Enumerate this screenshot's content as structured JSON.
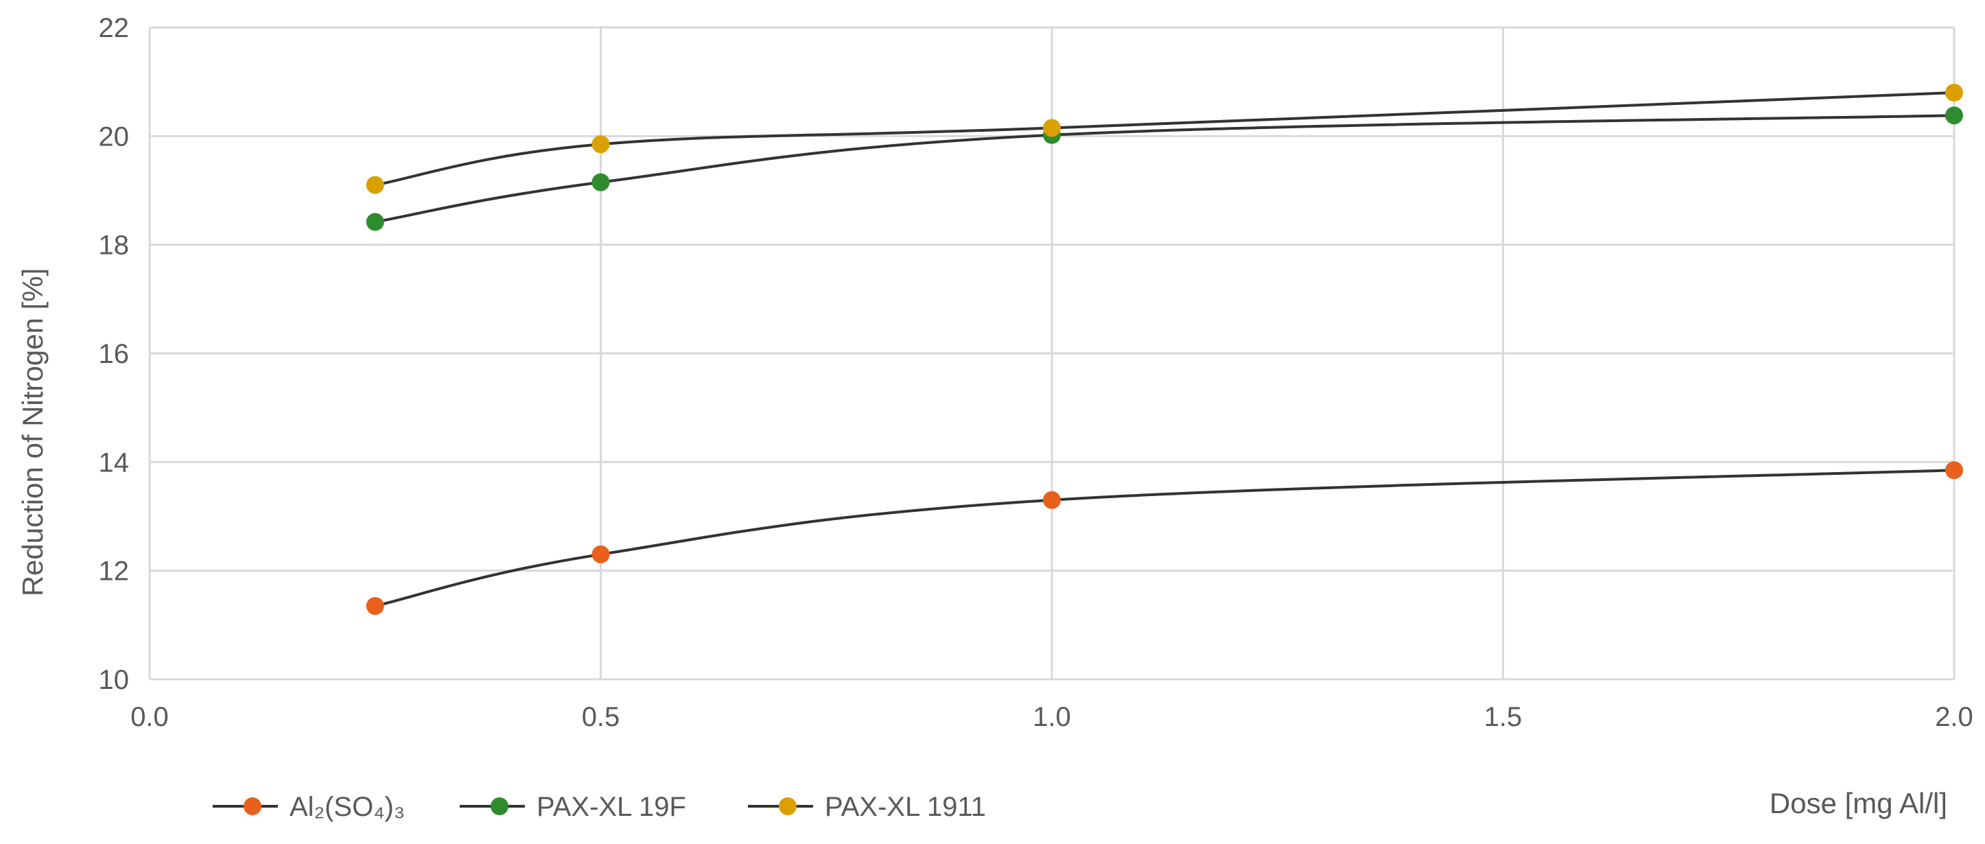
{
  "chart_data": {
    "type": "line",
    "title": "",
    "xlabel": "Dose [mg Al/l]",
    "ylabel": "Reduction of Nitrogen  [%]",
    "xlim": [
      0,
      2.0
    ],
    "ylim": [
      10,
      22
    ],
    "x_ticks": [
      "0.0",
      "0.5",
      "1.0",
      "1.5",
      "2.0"
    ],
    "y_ticks": [
      "10",
      "12",
      "14",
      "16",
      "18",
      "20",
      "22"
    ],
    "grid": true,
    "legend_position": "bottom-left",
    "line_color": "#333333",
    "series": [
      {
        "name": "Al₂(SO₄)₃",
        "color": "#E8601C",
        "x": [
          0.25,
          0.5,
          1.0,
          2.0
        ],
        "y": [
          11.35,
          12.3,
          13.3,
          13.85
        ]
      },
      {
        "name": "PAX-XL 19F",
        "color": "#2E8B2E",
        "x": [
          0.25,
          0.5,
          1.0,
          2.0
        ],
        "y": [
          18.42,
          19.15,
          20.02,
          20.38
        ]
      },
      {
        "name": "PAX-XL 1911",
        "color": "#D9A000",
        "x": [
          0.25,
          0.5,
          1.0,
          2.0
        ],
        "y": [
          19.1,
          19.85,
          20.15,
          20.8
        ]
      }
    ]
  }
}
